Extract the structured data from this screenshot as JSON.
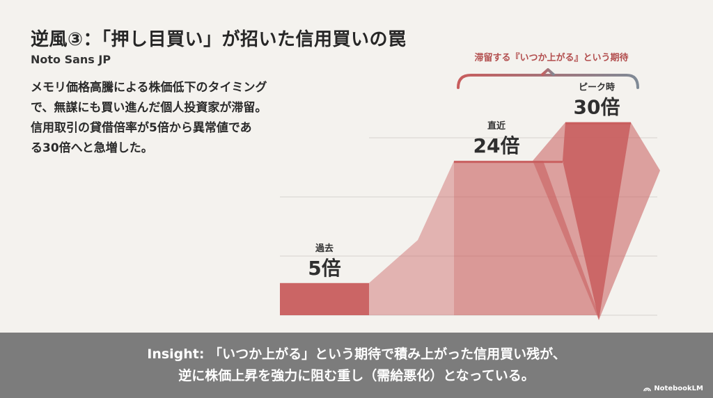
{
  "title": "逆風③：「押し目買い」が招いた信用買いの罠",
  "subtitle": "Noto Sans JP",
  "description": [
    "メモリ価格高騰による株価低下のタイミング",
    "で、無謀にも買い進んだ個人投資家が滞留。",
    "信用取引の貸借倍率が5倍から異常値であ",
    "る30倍へと急増した。"
  ],
  "colors": {
    "bar": "#c85d5d",
    "bracket_start": "#c85d5d",
    "bracket_end": "#7f8a96",
    "bracket_text": "#b24d4d",
    "grid": "#d6d3ce"
  },
  "chart_data": {
    "type": "area",
    "categories": [
      "過去",
      "直近",
      "ピーク時"
    ],
    "values": [
      5,
      24,
      30
    ],
    "value_labels": [
      "5倍",
      "24倍",
      "30倍"
    ],
    "ylim": [
      0,
      33
    ],
    "grid": true,
    "annotation": "滞留する『いつか上がる』という期待"
  },
  "insight": [
    "Insight: 「いつか上がる」という期待で積み上がった信用買い残が、",
    "逆に株価上昇を強力に阻む重し（需給悪化）となっている。"
  ],
  "brand": {
    "label": "NotebookLM",
    "icon": "notebooklm-logo-icon"
  }
}
